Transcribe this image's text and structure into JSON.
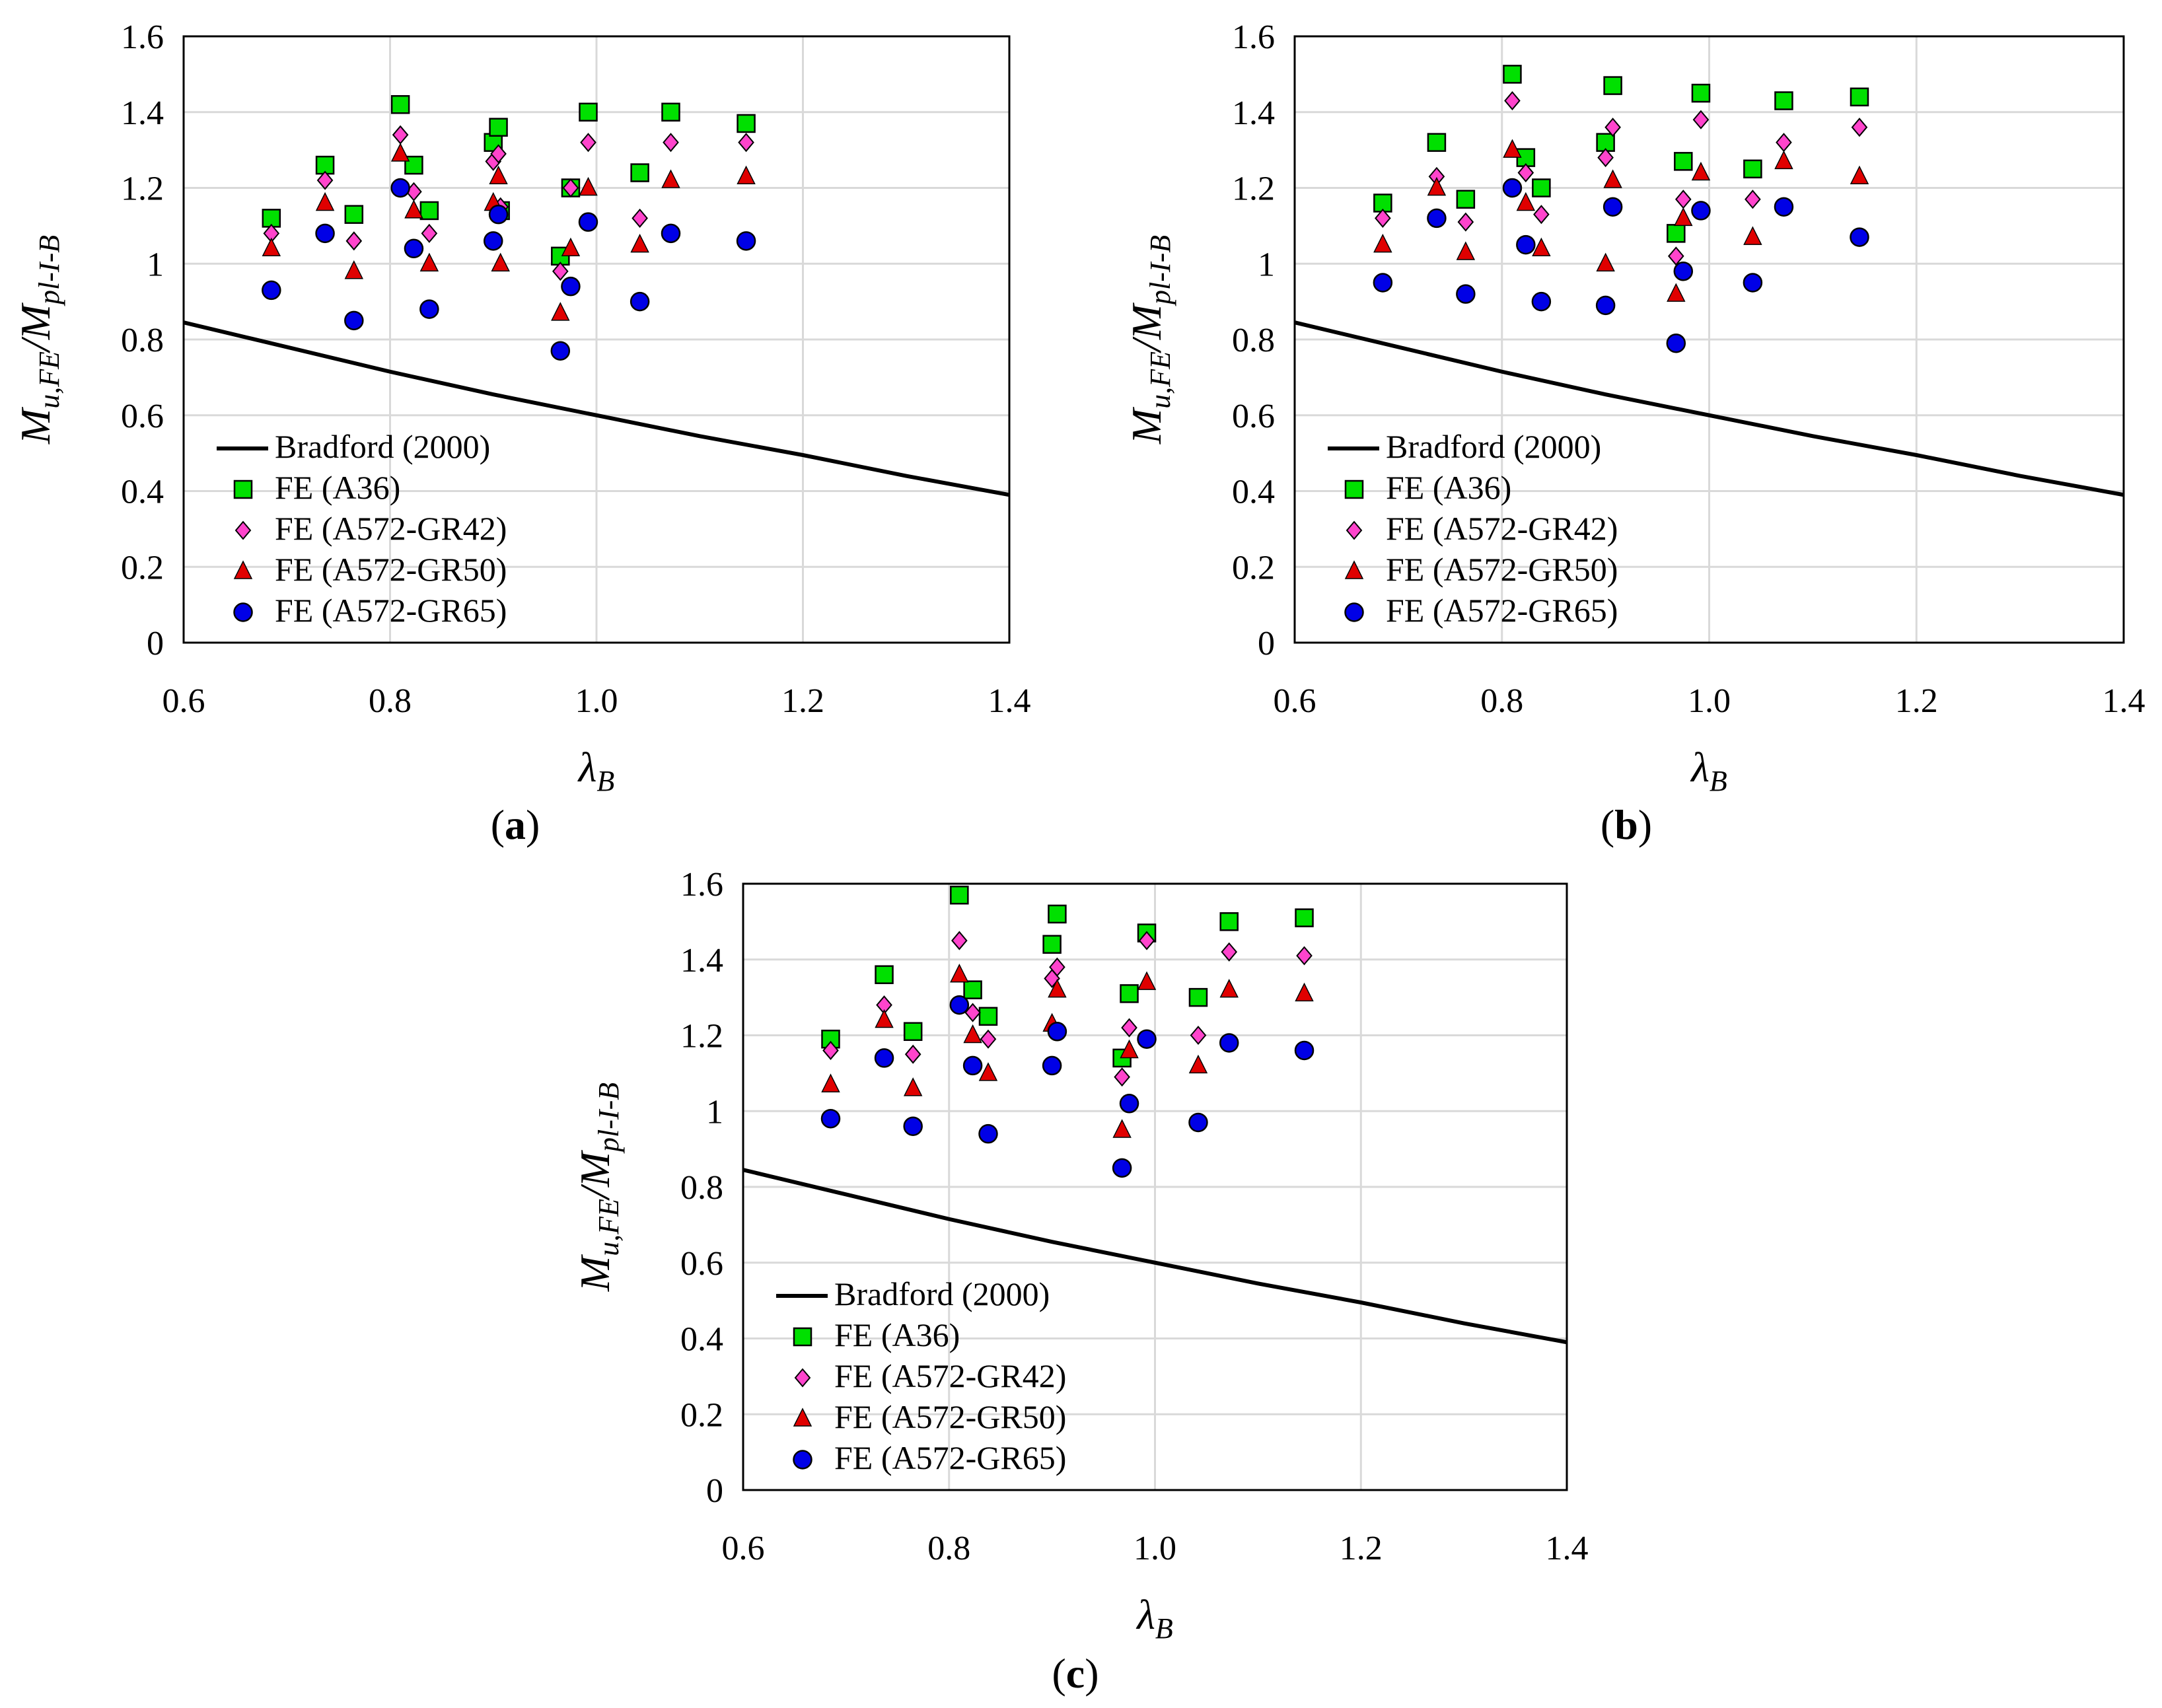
{
  "figure": {
    "legend_labels": [
      "Bradford (2000)",
      "FE (A36)",
      "FE (A572-GR42)",
      "FE (A572-GR50)",
      "FE (A572-GR65)"
    ],
    "x_axis_symbol": "λ",
    "x_axis_subscript": "B",
    "y_axis_main_1": "M",
    "y_axis_sub_1": "u,FE",
    "y_axis_slash": "/",
    "y_axis_main_2": "M",
    "y_axis_sub_2": "pl-I-B",
    "x_tick_labels": [
      "0.6",
      "0.8",
      "1.0",
      "1.2",
      "1.4"
    ],
    "y_tick_labels": [
      "0",
      "0.2",
      "0.4",
      "0.6",
      "0.8",
      "1",
      "1.2",
      "1.4",
      "1.6"
    ]
  },
  "colors": {
    "A36": "#00e000",
    "GR42": "#ff44cc",
    "GR50": "#e00000",
    "GR65": "#0000e6",
    "curve": "#000000",
    "grid": "#d9d9d9"
  },
  "chart_data": [
    {
      "panel": "a",
      "panel_open": "(",
      "panel_letter": "a",
      "panel_close": ")",
      "type": "scatter",
      "xlabel": "λB",
      "ylabel": "Mu,FE/Mpl-I-B",
      "xlim": [
        0.6,
        1.4
      ],
      "ylim": [
        0,
        1.6
      ],
      "curve": {
        "name": "Bradford (2000)",
        "x": [
          0.6,
          0.7,
          0.8,
          0.9,
          1.0,
          1.1,
          1.2,
          1.3,
          1.4
        ],
        "y": [
          0.845,
          0.78,
          0.715,
          0.655,
          0.6,
          0.545,
          0.495,
          0.44,
          0.39
        ]
      },
      "series": [
        {
          "name": "FE (A36)",
          "key": "A36",
          "marker": "square",
          "x": [
            0.685,
            0.737,
            0.765,
            0.81,
            0.823,
            0.838,
            0.9,
            0.905,
            0.907,
            0.965,
            0.975,
            0.992,
            1.042,
            1.072,
            1.145
          ],
          "y": [
            1.12,
            1.26,
            1.13,
            1.42,
            1.26,
            1.14,
            1.32,
            1.36,
            1.14,
            1.02,
            1.2,
            1.4,
            1.24,
            1.4,
            1.37
          ]
        },
        {
          "name": "FE (A572-GR42)",
          "key": "GR42",
          "marker": "diamond",
          "x": [
            0.685,
            0.737,
            0.765,
            0.81,
            0.823,
            0.838,
            0.9,
            0.905,
            0.907,
            0.965,
            0.975,
            0.992,
            1.042,
            1.072,
            1.145
          ],
          "y": [
            1.08,
            1.22,
            1.06,
            1.34,
            1.19,
            1.08,
            1.27,
            1.29,
            1.15,
            0.98,
            1.2,
            1.32,
            1.12,
            1.32,
            1.32
          ]
        },
        {
          "name": "FE (A572-GR50)",
          "key": "GR50",
          "marker": "triangle",
          "x": [
            0.685,
            0.737,
            0.765,
            0.81,
            0.823,
            0.838,
            0.9,
            0.905,
            0.907,
            0.965,
            0.975,
            0.992,
            1.042,
            1.072,
            1.145
          ],
          "y": [
            1.04,
            1.16,
            0.98,
            1.29,
            1.14,
            1.0,
            1.16,
            1.23,
            1.0,
            0.87,
            1.04,
            1.2,
            1.05,
            1.22,
            1.23
          ]
        },
        {
          "name": "FE (A572-GR65)",
          "key": "GR65",
          "marker": "circle",
          "x": [
            0.685,
            0.737,
            0.765,
            0.81,
            0.823,
            0.838,
            0.9,
            0.905,
            0.965,
            0.975,
            0.992,
            1.042,
            1.072,
            1.145
          ],
          "y": [
            0.93,
            1.08,
            0.85,
            1.2,
            1.04,
            0.88,
            1.06,
            1.13,
            0.77,
            0.94,
            1.11,
            0.9,
            1.08,
            1.06
          ]
        }
      ]
    },
    {
      "panel": "b",
      "panel_open": "(",
      "panel_letter": "b",
      "panel_close": ")",
      "type": "scatter",
      "xlabel": "λB",
      "ylabel": "Mu,FE/Mpl-I-B",
      "xlim": [
        0.6,
        1.4
      ],
      "ylim": [
        0,
        1.6
      ],
      "curve": {
        "name": "Bradford (2000)",
        "x": [
          0.6,
          0.7,
          0.8,
          0.9,
          1.0,
          1.1,
          1.2,
          1.3,
          1.4
        ],
        "y": [
          0.845,
          0.78,
          0.715,
          0.655,
          0.6,
          0.545,
          0.495,
          0.44,
          0.39
        ]
      },
      "series": [
        {
          "name": "FE (A36)",
          "key": "A36",
          "marker": "square",
          "x": [
            0.685,
            0.737,
            0.765,
            0.81,
            0.823,
            0.838,
            0.9,
            0.907,
            0.968,
            0.975,
            0.992,
            1.042,
            1.072,
            1.145
          ],
          "y": [
            1.16,
            1.32,
            1.17,
            1.5,
            1.28,
            1.2,
            1.32,
            1.47,
            1.08,
            1.27,
            1.45,
            1.25,
            1.43,
            1.44
          ]
        },
        {
          "name": "FE (A572-GR42)",
          "key": "GR42",
          "marker": "diamond",
          "x": [
            0.685,
            0.737,
            0.765,
            0.81,
            0.823,
            0.838,
            0.9,
            0.907,
            0.968,
            0.975,
            0.992,
            1.042,
            1.072,
            1.145
          ],
          "y": [
            1.12,
            1.23,
            1.11,
            1.43,
            1.24,
            1.13,
            1.28,
            1.36,
            1.02,
            1.17,
            1.38,
            1.17,
            1.32,
            1.36
          ]
        },
        {
          "name": "FE (A572-GR50)",
          "key": "GR50",
          "marker": "triangle",
          "x": [
            0.685,
            0.737,
            0.765,
            0.81,
            0.823,
            0.838,
            0.9,
            0.907,
            0.968,
            0.975,
            0.992,
            1.042,
            1.072,
            1.145
          ],
          "y": [
            1.05,
            1.2,
            1.03,
            1.3,
            1.16,
            1.04,
            1.0,
            1.22,
            0.92,
            1.12,
            1.24,
            1.07,
            1.27,
            1.23
          ]
        },
        {
          "name": "FE (A572-GR65)",
          "key": "GR65",
          "marker": "circle",
          "x": [
            0.685,
            0.737,
            0.765,
            0.81,
            0.823,
            0.838,
            0.9,
            0.907,
            0.968,
            0.975,
            0.992,
            1.042,
            1.072,
            1.145
          ],
          "y": [
            0.95,
            1.12,
            0.92,
            1.2,
            1.05,
            0.9,
            0.89,
            1.15,
            0.79,
            0.98,
            1.14,
            0.95,
            1.15,
            1.07
          ]
        }
      ]
    },
    {
      "panel": "c",
      "panel_open": "(",
      "panel_letter": "c",
      "panel_close": ")",
      "type": "scatter",
      "xlabel": "λB",
      "ylabel": "Mu,FE/Mpl-I-B",
      "xlim": [
        0.6,
        1.4
      ],
      "ylim": [
        0,
        1.6
      ],
      "curve": {
        "name": "Bradford (2000)",
        "x": [
          0.6,
          0.7,
          0.8,
          0.9,
          1.0,
          1.1,
          1.2,
          1.3,
          1.4
        ],
        "y": [
          0.845,
          0.78,
          0.715,
          0.655,
          0.6,
          0.545,
          0.495,
          0.44,
          0.39
        ]
      },
      "series": [
        {
          "name": "FE (A36)",
          "key": "A36",
          "marker": "square",
          "x": [
            0.685,
            0.737,
            0.765,
            0.81,
            0.823,
            0.838,
            0.9,
            0.905,
            0.968,
            0.975,
            0.992,
            1.042,
            1.072,
            1.145
          ],
          "y": [
            1.19,
            1.36,
            1.21,
            1.57,
            1.32,
            1.25,
            1.44,
            1.52,
            1.14,
            1.31,
            1.47,
            1.3,
            1.5,
            1.51
          ]
        },
        {
          "name": "FE (A572-GR42)",
          "key": "GR42",
          "marker": "diamond",
          "x": [
            0.685,
            0.737,
            0.765,
            0.81,
            0.823,
            0.838,
            0.9,
            0.905,
            0.968,
            0.975,
            0.992,
            1.042,
            1.072,
            1.145
          ],
          "y": [
            1.16,
            1.28,
            1.15,
            1.45,
            1.26,
            1.19,
            1.35,
            1.38,
            1.09,
            1.22,
            1.45,
            1.2,
            1.42,
            1.41
          ]
        },
        {
          "name": "FE (A572-GR50)",
          "key": "GR50",
          "marker": "triangle",
          "x": [
            0.685,
            0.737,
            0.765,
            0.81,
            0.823,
            0.838,
            0.9,
            0.905,
            0.968,
            0.975,
            0.992,
            1.042,
            1.072,
            1.145
          ],
          "y": [
            1.07,
            1.24,
            1.06,
            1.36,
            1.2,
            1.1,
            1.23,
            1.32,
            0.95,
            1.16,
            1.34,
            1.12,
            1.32,
            1.31
          ]
        },
        {
          "name": "FE (A572-GR65)",
          "key": "GR65",
          "marker": "circle",
          "x": [
            0.685,
            0.737,
            0.765,
            0.81,
            0.823,
            0.838,
            0.9,
            0.905,
            0.968,
            0.975,
            0.992,
            1.042,
            1.072,
            1.145
          ],
          "y": [
            0.98,
            1.14,
            0.96,
            1.28,
            1.12,
            0.94,
            1.12,
            1.21,
            0.85,
            1.02,
            1.19,
            0.97,
            1.18,
            1.16
          ]
        }
      ]
    }
  ]
}
